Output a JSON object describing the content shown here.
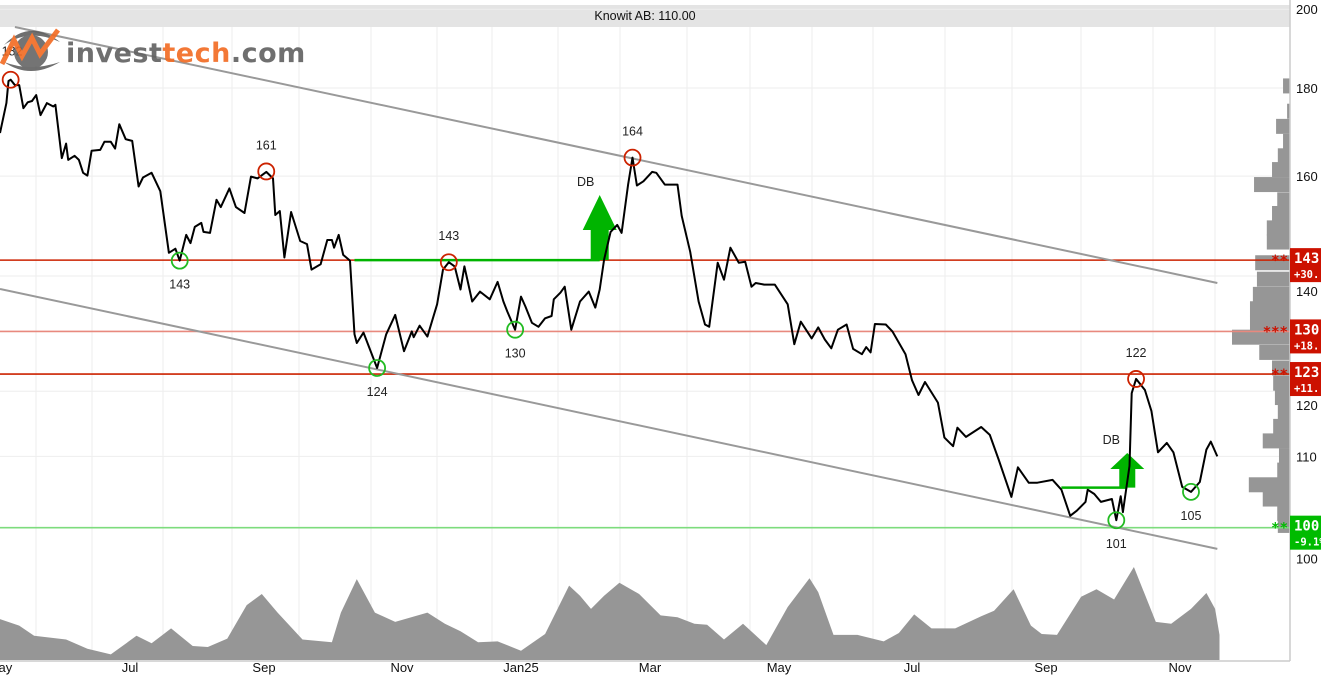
{
  "title": "Knowit AB: 110.00",
  "logo": {
    "part1": "invest",
    "part2": "tech",
    "part3": ".com",
    "color_gray": "#606060",
    "color_orange": "#f26a21"
  },
  "colors": {
    "price": "#000000",
    "volume": "#969696",
    "trend": "#999999",
    "resistance": "#cc2200",
    "resistance_light": "#e8897e",
    "support": "#7ddc7d",
    "signal_green": "#00b400",
    "top_circle": "#cc2200",
    "bottom_circle": "#22bb22",
    "box_red": "#cc1100",
    "box_green": "#00bb00"
  },
  "chart_data": {
    "type": "line",
    "title": "Knowit AB: 110.00",
    "y_scale": "log",
    "ylim": [
      95,
      200
    ],
    "y_ticks": [
      100,
      110,
      120,
      140,
      160,
      180,
      200
    ],
    "y_axis_position": "right",
    "x_ticks": [
      {
        "label": "May",
        "date": "2024-05-01"
      },
      {
        "label": "Jul",
        "date": "2024-07-01"
      },
      {
        "label": "Sep",
        "date": "2024-09-01"
      },
      {
        "label": "Nov",
        "date": "2024-11-01"
      },
      {
        "label": "Jan25",
        "date": "2025-01-01"
      },
      {
        "label": "Mar",
        "date": "2025-03-01"
      },
      {
        "label": "May",
        "date": "2025-05-01"
      },
      {
        "label": "Jul",
        "date": "2025-07-01"
      },
      {
        "label": "Sep",
        "date": "2025-09-01"
      },
      {
        "label": "Nov",
        "date": "2025-11-01"
      }
    ],
    "grid": true,
    "price": [
      [
        "2024-05-01",
        169.5
      ],
      [
        "2024-05-04",
        176.4
      ],
      [
        "2024-05-05",
        181.7
      ],
      [
        "2024-05-06",
        182
      ],
      [
        "2024-05-08",
        180.7
      ],
      [
        "2024-05-10",
        180.7
      ],
      [
        "2024-05-12",
        175.2
      ],
      [
        "2024-05-14",
        176.6
      ],
      [
        "2024-05-16",
        176.9
      ],
      [
        "2024-05-18",
        178.3
      ],
      [
        "2024-05-20",
        173.6
      ],
      [
        "2024-05-23",
        176.4
      ],
      [
        "2024-05-26",
        175.6
      ],
      [
        "2024-05-27",
        176.0
      ],
      [
        "2024-05-30",
        163.9
      ],
      [
        "2024-06-01",
        167.1
      ],
      [
        "2024-06-02",
        163.5
      ],
      [
        "2024-06-05",
        164.4
      ],
      [
        "2024-06-07",
        163.5
      ],
      [
        "2024-06-09",
        160.7
      ],
      [
        "2024-06-11",
        160.1
      ],
      [
        "2024-06-13",
        165.5
      ],
      [
        "2024-06-17",
        165.7
      ],
      [
        "2024-06-19",
        167.5
      ],
      [
        "2024-06-22",
        167.5
      ],
      [
        "2024-06-24",
        166.0
      ],
      [
        "2024-06-26",
        171.5
      ],
      [
        "2024-06-29",
        168.1
      ],
      [
        "2024-07-02",
        167.7
      ],
      [
        "2024-07-05",
        157.8
      ],
      [
        "2024-07-07",
        159.7
      ],
      [
        "2024-07-11",
        160.7
      ],
      [
        "2024-07-15",
        156.8
      ],
      [
        "2024-07-19",
        144.4
      ],
      [
        "2024-07-22",
        145.2
      ],
      [
        "2024-07-24",
        142.9
      ],
      [
        "2024-07-27",
        147.9
      ],
      [
        "2024-07-29",
        146.3
      ],
      [
        "2024-07-31",
        149.5
      ],
      [
        "2024-08-03",
        150.3
      ],
      [
        "2024-08-04",
        148.5
      ],
      [
        "2024-08-07",
        148.3
      ],
      [
        "2024-08-10",
        155.0
      ],
      [
        "2024-08-12",
        153.5
      ],
      [
        "2024-08-16",
        157.4
      ],
      [
        "2024-08-19",
        153.5
      ],
      [
        "2024-08-23",
        152.3
      ],
      [
        "2024-08-26",
        159.9
      ],
      [
        "2024-08-29",
        159.5
      ],
      [
        "2024-09-02",
        160.9
      ],
      [
        "2024-09-05",
        159.5
      ],
      [
        "2024-09-06",
        151.9
      ],
      [
        "2024-09-08",
        152.7
      ],
      [
        "2024-09-10",
        143.5
      ],
      [
        "2024-09-13",
        152.5
      ],
      [
        "2024-09-17",
        146.7
      ],
      [
        "2024-09-20",
        146.1
      ],
      [
        "2024-09-22",
        141.2
      ],
      [
        "2024-09-26",
        142.2
      ],
      [
        "2024-09-29",
        146.9
      ],
      [
        "2024-10-01",
        146.9
      ],
      [
        "2024-10-02",
        145.4
      ],
      [
        "2024-10-04",
        147.9
      ],
      [
        "2024-10-06",
        144.0
      ],
      [
        "2024-10-09",
        142.9
      ],
      [
        "2024-10-11",
        129.5
      ],
      [
        "2024-10-12",
        128.0
      ],
      [
        "2024-10-15",
        129.8
      ],
      [
        "2024-10-21",
        123.8
      ],
      [
        "2024-10-25",
        129.5
      ],
      [
        "2024-10-29",
        132.9
      ],
      [
        "2024-11-02",
        126.6
      ],
      [
        "2024-11-06",
        130.0
      ],
      [
        "2024-11-07",
        129.0
      ],
      [
        "2024-11-10",
        131.0
      ],
      [
        "2024-11-14",
        129.1
      ],
      [
        "2024-11-19",
        134.8
      ],
      [
        "2024-11-22",
        141.2
      ],
      [
        "2024-11-25",
        142.6
      ],
      [
        "2024-11-28",
        141.8
      ],
      [
        "2024-12-01",
        137.5
      ],
      [
        "2024-12-03",
        141.8
      ],
      [
        "2024-12-07",
        135.3
      ],
      [
        "2024-12-11",
        137.1
      ],
      [
        "2024-12-16",
        135.7
      ],
      [
        "2024-12-20",
        138.9
      ],
      [
        "2024-12-23",
        135.3
      ],
      [
        "2024-12-25",
        133.5
      ],
      [
        "2024-12-29",
        130.3
      ],
      [
        "2025-01-01",
        136.2
      ],
      [
        "2025-01-03",
        134.4
      ],
      [
        "2025-01-06",
        131.5
      ],
      [
        "2025-01-09",
        130.8
      ],
      [
        "2025-01-12",
        132.3
      ],
      [
        "2025-01-15",
        132.7
      ],
      [
        "2025-01-16",
        135.7
      ],
      [
        "2025-01-19",
        136.9
      ],
      [
        "2025-01-21",
        138.0
      ],
      [
        "2025-01-24",
        130.3
      ],
      [
        "2025-01-28",
        135.3
      ],
      [
        "2025-02-01",
        137.1
      ],
      [
        "2025-02-04",
        134.2
      ],
      [
        "2025-02-06",
        137.5
      ],
      [
        "2025-02-08",
        143.1
      ],
      [
        "2025-02-11",
        148.5
      ],
      [
        "2025-02-14",
        149.9
      ],
      [
        "2025-02-16",
        148.3
      ],
      [
        "2025-02-19",
        158.2
      ],
      [
        "2025-02-21",
        164.0
      ],
      [
        "2025-02-23",
        158.0
      ],
      [
        "2025-02-26",
        158.9
      ],
      [
        "2025-03-02",
        160.9
      ],
      [
        "2025-03-04",
        160.7
      ],
      [
        "2025-03-08",
        158.2
      ],
      [
        "2025-03-14",
        158.2
      ],
      [
        "2025-03-16",
        151.7
      ],
      [
        "2025-03-20",
        144.6
      ],
      [
        "2025-03-24",
        135.3
      ],
      [
        "2025-03-27",
        131.2
      ],
      [
        "2025-03-29",
        130.8
      ],
      [
        "2025-04-02",
        142.5
      ],
      [
        "2025-04-05",
        139.3
      ],
      [
        "2025-04-08",
        145.4
      ],
      [
        "2025-04-12",
        142.5
      ],
      [
        "2025-04-15",
        142.7
      ],
      [
        "2025-04-18",
        138.0
      ],
      [
        "2025-04-20",
        138.7
      ],
      [
        "2025-04-24",
        138.4
      ],
      [
        "2025-04-29",
        138.4
      ],
      [
        "2025-05-05",
        134.8
      ],
      [
        "2025-05-08",
        127.8
      ],
      [
        "2025-05-11",
        131.7
      ],
      [
        "2025-05-16",
        128.8
      ],
      [
        "2025-05-19",
        130.7
      ],
      [
        "2025-05-22",
        128.6
      ],
      [
        "2025-05-25",
        127.1
      ],
      [
        "2025-05-28",
        130.3
      ],
      [
        "2025-06-01",
        131.2
      ],
      [
        "2025-06-04",
        127.0
      ],
      [
        "2025-06-08",
        126.1
      ],
      [
        "2025-06-10",
        127.3
      ],
      [
        "2025-06-12",
        126.4
      ],
      [
        "2025-06-14",
        131.3
      ],
      [
        "2025-06-19",
        131.2
      ],
      [
        "2025-06-22",
        130.0
      ],
      [
        "2025-06-28",
        126.1
      ],
      [
        "2025-07-01",
        121.8
      ],
      [
        "2025-07-04",
        119.4
      ],
      [
        "2025-07-07",
        121.5
      ],
      [
        "2025-07-13",
        118.2
      ],
      [
        "2025-07-16",
        112.8
      ],
      [
        "2025-07-20",
        111.5
      ],
      [
        "2025-07-22",
        114.3
      ],
      [
        "2025-07-26",
        112.9
      ],
      [
        "2025-08-02",
        114.4
      ],
      [
        "2025-08-06",
        113.2
      ],
      [
        "2025-08-10",
        109.6
      ],
      [
        "2025-08-16",
        104.2
      ],
      [
        "2025-08-19",
        108.4
      ],
      [
        "2025-08-24",
        106.2
      ],
      [
        "2025-08-28",
        106.2
      ],
      [
        "2025-09-04",
        106.6
      ],
      [
        "2025-09-08",
        105.2
      ],
      [
        "2025-09-12",
        101.6
      ],
      [
        "2025-09-15",
        102.3
      ],
      [
        "2025-09-19",
        103.5
      ],
      [
        "2025-09-20",
        105.2
      ],
      [
        "2025-09-23",
        104.6
      ],
      [
        "2025-09-26",
        103.5
      ],
      [
        "2025-10-01",
        103.9
      ],
      [
        "2025-10-03",
        101.0
      ],
      [
        "2025-10-05",
        104.3
      ],
      [
        "2025-10-06",
        102.1
      ],
      [
        "2025-10-09",
        108.6
      ],
      [
        "2025-10-10",
        119.7
      ],
      [
        "2025-10-12",
        122.0
      ],
      [
        "2025-10-16",
        120.2
      ],
      [
        "2025-10-19",
        116.9
      ],
      [
        "2025-10-22",
        110.6
      ],
      [
        "2025-10-26",
        112.0
      ],
      [
        "2025-10-29",
        110.6
      ],
      [
        "2025-11-02",
        105.6
      ],
      [
        "2025-11-06",
        104.9
      ],
      [
        "2025-11-10",
        106.3
      ],
      [
        "2025-11-13",
        111.0
      ],
      [
        "2025-11-15",
        112.2
      ],
      [
        "2025-11-18",
        110.0
      ]
    ],
    "volume_relative": [
      [
        "2024-05-01",
        44
      ],
      [
        "2024-05-10",
        37
      ],
      [
        "2024-05-17",
        26
      ],
      [
        "2024-06-01",
        22
      ],
      [
        "2024-06-11",
        12
      ],
      [
        "2024-06-22",
        6
      ],
      [
        "2024-07-04",
        26
      ],
      [
        "2024-07-11",
        18
      ],
      [
        "2024-07-20",
        34
      ],
      [
        "2024-07-30",
        15
      ],
      [
        "2024-08-06",
        14
      ],
      [
        "2024-08-15",
        23
      ],
      [
        "2024-08-24",
        59
      ],
      [
        "2024-08-31",
        71
      ],
      [
        "2024-09-07",
        51
      ],
      [
        "2024-09-18",
        22
      ],
      [
        "2024-10-01",
        19
      ],
      [
        "2024-10-05",
        51
      ],
      [
        "2024-10-12",
        87
      ],
      [
        "2024-10-20",
        51
      ],
      [
        "2024-10-29",
        41
      ],
      [
        "2024-11-14",
        51
      ],
      [
        "2024-11-23",
        39
      ],
      [
        "2024-12-01",
        31
      ],
      [
        "2024-12-10",
        19
      ],
      [
        "2024-12-20",
        20
      ],
      [
        "2025-01-01",
        10
      ],
      [
        "2025-01-12",
        28
      ],
      [
        "2025-01-23",
        80
      ],
      [
        "2025-01-28",
        69
      ],
      [
        "2025-02-02",
        55
      ],
      [
        "2025-02-08",
        69
      ],
      [
        "2025-02-15",
        83
      ],
      [
        "2025-02-24",
        71
      ],
      [
        "2025-03-06",
        48
      ],
      [
        "2025-03-14",
        46
      ],
      [
        "2025-03-22",
        39
      ],
      [
        "2025-03-28",
        38
      ],
      [
        "2025-04-05",
        22
      ],
      [
        "2025-04-14",
        39
      ],
      [
        "2025-04-25",
        16
      ],
      [
        "2025-05-05",
        57
      ],
      [
        "2025-05-15",
        88
      ],
      [
        "2025-05-19",
        73
      ],
      [
        "2025-05-26",
        27
      ],
      [
        "2025-06-06",
        27
      ],
      [
        "2025-06-18",
        20
      ],
      [
        "2025-06-25",
        29
      ],
      [
        "2025-07-02",
        49
      ],
      [
        "2025-07-10",
        34
      ],
      [
        "2025-07-21",
        34
      ],
      [
        "2025-08-02",
        47
      ],
      [
        "2025-08-08",
        53
      ],
      [
        "2025-08-17",
        76
      ],
      [
        "2025-08-25",
        37
      ],
      [
        "2025-08-30",
        28
      ],
      [
        "2025-09-06",
        27
      ],
      [
        "2025-09-17",
        68
      ],
      [
        "2025-09-24",
        76
      ],
      [
        "2025-10-02",
        65
      ],
      [
        "2025-10-11",
        100
      ],
      [
        "2025-10-21",
        41
      ],
      [
        "2025-10-28",
        39
      ],
      [
        "2025-11-06",
        55
      ],
      [
        "2025-11-13",
        72
      ],
      [
        "2025-11-17",
        55
      ],
      [
        "2025-11-19",
        27
      ]
    ],
    "volume_profile": [
      [
        180.5,
        0.12
      ],
      [
        174.5,
        0.05
      ],
      [
        171,
        0.24
      ],
      [
        167.6,
        0.12
      ],
      [
        164.4,
        0.21
      ],
      [
        161.4,
        0.31
      ],
      [
        158.2,
        0.62
      ],
      [
        155,
        0.22
      ],
      [
        152.2,
        0.31
      ],
      [
        149.3,
        0.4
      ],
      [
        146.5,
        0.4
      ],
      [
        142.5,
        0.6
      ],
      [
        139.4,
        0.57
      ],
      [
        136.6,
        0.64
      ],
      [
        134,
        0.69
      ],
      [
        131.5,
        0.69
      ],
      [
        129,
        1.0
      ],
      [
        126.4,
        0.53
      ],
      [
        123.8,
        0.31
      ],
      [
        121.3,
        0.29
      ],
      [
        119,
        0.26
      ],
      [
        116.7,
        0.21
      ],
      [
        114.5,
        0.29
      ],
      [
        112.3,
        0.47
      ],
      [
        110.1,
        0.19
      ],
      [
        108,
        0.22
      ],
      [
        105.9,
        0.71
      ],
      [
        103.9,
        0.47
      ],
      [
        101.9,
        0.22
      ],
      [
        100.3,
        0.21
      ]
    ],
    "trend_lines": [
      {
        "from": [
          "2024-05-08",
          195.3
        ],
        "to": [
          "2025-11-18",
          138.7
        ]
      },
      {
        "from": [
          "2024-05-01",
          137.6
        ],
        "to": [
          "2025-11-18",
          97.2
        ]
      }
    ],
    "levels": [
      {
        "price": 143,
        "kind": "resistance",
        "stars": "**",
        "label": "143",
        "change": "+30.",
        "box": "red",
        "line": "resistance"
      },
      {
        "price": 130,
        "kind": "resistance",
        "stars": "***",
        "label": "130",
        "change": "+18.",
        "box": "red",
        "line": "resistance_light"
      },
      {
        "price": 122.8,
        "kind": "resistance",
        "stars": "**",
        "label": "123",
        "change": "+11.",
        "box": "red",
        "line": "resistance"
      },
      {
        "price": 100,
        "kind": "support",
        "stars": "**",
        "label": "100",
        "change": "-9.1%",
        "box": "green",
        "line": "support"
      }
    ],
    "tops": [
      {
        "date": "2024-05-06",
        "price": 182,
        "label": "182"
      },
      {
        "date": "2024-09-02",
        "price": 161,
        "label": "161"
      },
      {
        "date": "2024-11-25",
        "price": 142.6,
        "label": "143"
      },
      {
        "date": "2025-02-21",
        "price": 164,
        "label": "164"
      },
      {
        "date": "2025-10-12",
        "price": 122,
        "label": "122"
      }
    ],
    "bottoms": [
      {
        "date": "2024-07-24",
        "price": 142.9,
        "label": "143"
      },
      {
        "date": "2024-10-21",
        "price": 123.8,
        "label": "124"
      },
      {
        "date": "2024-12-29",
        "price": 130.3,
        "label": "130"
      },
      {
        "date": "2025-10-03",
        "price": 101,
        "label": "101"
      },
      {
        "date": "2025-11-06",
        "price": 104.9,
        "label": "105"
      }
    ],
    "signals": [
      {
        "label": "DB",
        "neckline": 143,
        "start": "2024-10-11",
        "end": "2025-02-06",
        "target": 156
      },
      {
        "label": "DB",
        "neckline": 105.5,
        "start": "2025-09-08",
        "end": "2025-10-08",
        "target": 110.5
      }
    ]
  }
}
